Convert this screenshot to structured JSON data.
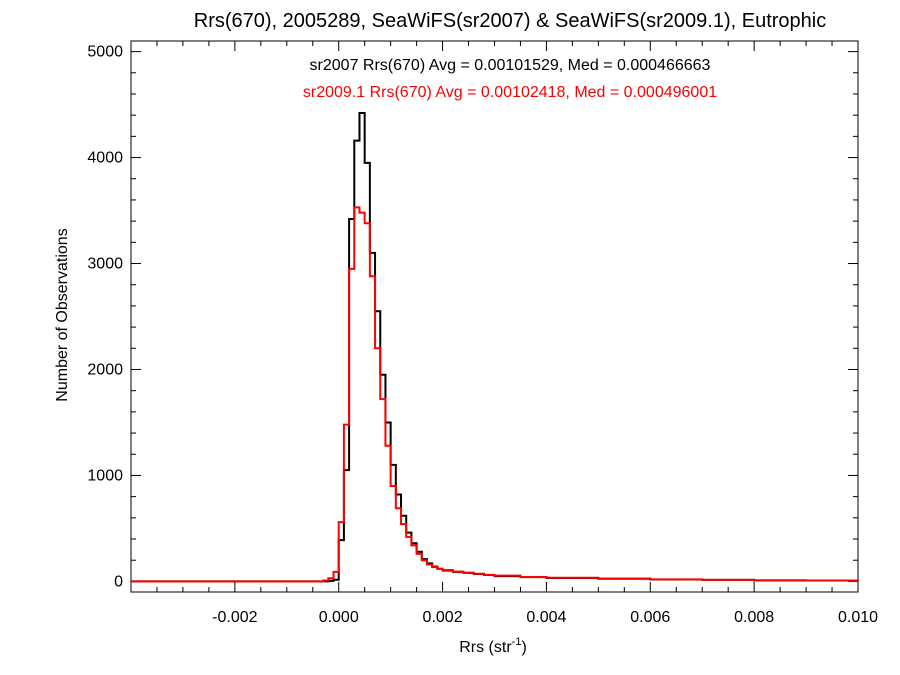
{
  "chart_data": {
    "type": "line",
    "title": "Rrs(670), 2005289, SeaWiFS(sr2007) & SeaWiFS(sr2009.1), Eutrophic",
    "xlabel_main": "Rrs (str",
    "xlabel_sup": "-1",
    "xlabel_close": ")",
    "ylabel": "Number of Observations",
    "xlim": [
      -0.004,
      0.01
    ],
    "ylim": [
      -100,
      5100
    ],
    "x_ticks": [
      {
        "value": -0.002,
        "label": "-0.002"
      },
      {
        "value": 0.0,
        "label": "0.000"
      },
      {
        "value": 0.002,
        "label": "0.002"
      },
      {
        "value": 0.004,
        "label": "0.004"
      },
      {
        "value": 0.006,
        "label": "0.006"
      },
      {
        "value": 0.008,
        "label": "0.008"
      },
      {
        "value": 0.01,
        "label": "0.010"
      }
    ],
    "y_ticks": [
      {
        "value": 0,
        "label": "0"
      },
      {
        "value": 1000,
        "label": "1000"
      },
      {
        "value": 2000,
        "label": "2000"
      },
      {
        "value": 3000,
        "label": "3000"
      },
      {
        "value": 4000,
        "label": "4000"
      },
      {
        "value": 5000,
        "label": "5000"
      }
    ],
    "grid": false,
    "bin_width": 0.0001,
    "series": [
      {
        "name": "sr2007",
        "color": "#000000",
        "annotation": "sr2007 Rrs(670) Avg = 0.00101529, Med = 0.000466663",
        "points": [
          [
            -0.004,
            0
          ],
          [
            -0.0003,
            0
          ],
          [
            -0.0002,
            5
          ],
          [
            -0.0001,
            15
          ],
          [
            0.0,
            390
          ],
          [
            0.0001,
            1050
          ],
          [
            0.0002,
            3420
          ],
          [
            0.0003,
            4160
          ],
          [
            0.0004,
            4420
          ],
          [
            0.0005,
            3950
          ],
          [
            0.0006,
            3100
          ],
          [
            0.0007,
            2550
          ],
          [
            0.0008,
            1950
          ],
          [
            0.0009,
            1500
          ],
          [
            0.001,
            1100
          ],
          [
            0.0011,
            820
          ],
          [
            0.0012,
            620
          ],
          [
            0.0013,
            460
          ],
          [
            0.0014,
            360
          ],
          [
            0.0015,
            280
          ],
          [
            0.0016,
            210
          ],
          [
            0.0017,
            170
          ],
          [
            0.0018,
            140
          ],
          [
            0.0019,
            120
          ],
          [
            0.002,
            105
          ],
          [
            0.0022,
            90
          ],
          [
            0.0024,
            80
          ],
          [
            0.0026,
            70
          ],
          [
            0.0028,
            60
          ],
          [
            0.003,
            50
          ],
          [
            0.0035,
            40
          ],
          [
            0.004,
            32
          ],
          [
            0.005,
            25
          ],
          [
            0.006,
            18
          ],
          [
            0.007,
            14
          ],
          [
            0.008,
            10
          ],
          [
            0.009,
            8
          ],
          [
            0.01,
            6
          ]
        ]
      },
      {
        "name": "sr2009.1",
        "color": "#ff0000",
        "annotation": "sr2009.1 Rrs(670) Avg = 0.00102418, Med = 0.000496001",
        "points": [
          [
            -0.004,
            0
          ],
          [
            -0.0003,
            8
          ],
          [
            -0.0002,
            30
          ],
          [
            -0.0001,
            90
          ],
          [
            0.0,
            560
          ],
          [
            0.0001,
            1480
          ],
          [
            0.0002,
            2950
          ],
          [
            0.0003,
            3530
          ],
          [
            0.0004,
            3480
          ],
          [
            0.0005,
            3380
          ],
          [
            0.0006,
            2880
          ],
          [
            0.0007,
            2200
          ],
          [
            0.0008,
            1720
          ],
          [
            0.0009,
            1280
          ],
          [
            0.001,
            900
          ],
          [
            0.0011,
            690
          ],
          [
            0.0012,
            540
          ],
          [
            0.0013,
            420
          ],
          [
            0.0014,
            340
          ],
          [
            0.0015,
            260
          ],
          [
            0.0016,
            200
          ],
          [
            0.0017,
            160
          ],
          [
            0.0018,
            135
          ],
          [
            0.0019,
            118
          ],
          [
            0.002,
            100
          ],
          [
            0.0022,
            92
          ],
          [
            0.0024,
            82
          ],
          [
            0.0026,
            72
          ],
          [
            0.0028,
            62
          ],
          [
            0.003,
            54
          ],
          [
            0.0035,
            42
          ],
          [
            0.004,
            34
          ],
          [
            0.005,
            26
          ],
          [
            0.006,
            19
          ],
          [
            0.007,
            14
          ],
          [
            0.008,
            10
          ],
          [
            0.009,
            8
          ],
          [
            0.01,
            6
          ]
        ]
      }
    ]
  }
}
